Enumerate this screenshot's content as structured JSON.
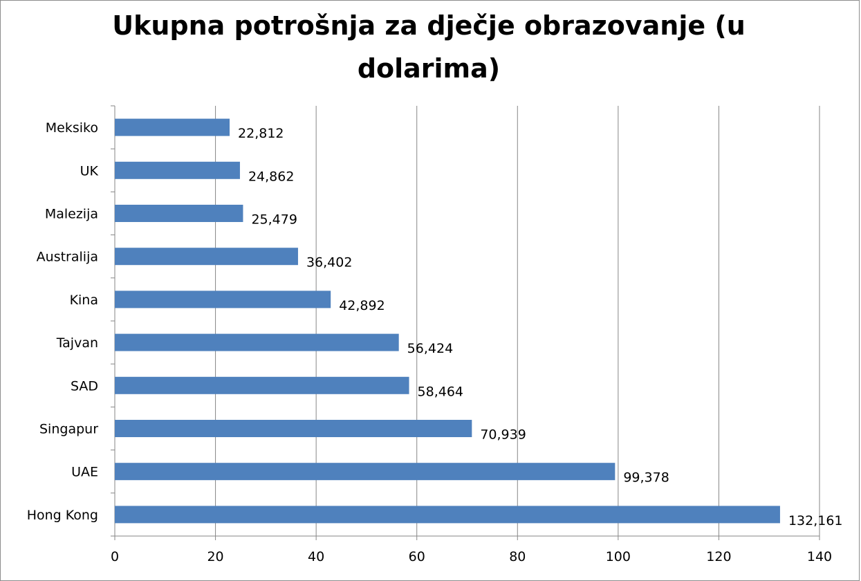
{
  "chart_data": {
    "type": "bar",
    "orientation": "horizontal",
    "title": "Ukupna potrošnja za dječje obrazovanje (u dolarima)",
    "categories": [
      "Meksiko",
      "UK",
      "Malezija",
      "Australija",
      "Kina",
      "Tajvan",
      "SAD",
      "Singapur",
      "UAE",
      "Hong Kong"
    ],
    "values": [
      22.812,
      24.862,
      25.479,
      36.402,
      42.892,
      56.424,
      58.464,
      70.939,
      99.378,
      132.161
    ],
    "data_labels": [
      "22,812",
      "24,862",
      "25,479",
      "36,402",
      "42,892",
      "56,424",
      "58,464",
      "70,939",
      "99,378",
      "132,161"
    ],
    "xlim": [
      0,
      140
    ],
    "x_ticks": [
      0,
      20,
      40,
      60,
      80,
      100,
      120,
      140
    ],
    "grid": true,
    "legend": "none",
    "bar_color": "#4f81bd"
  }
}
